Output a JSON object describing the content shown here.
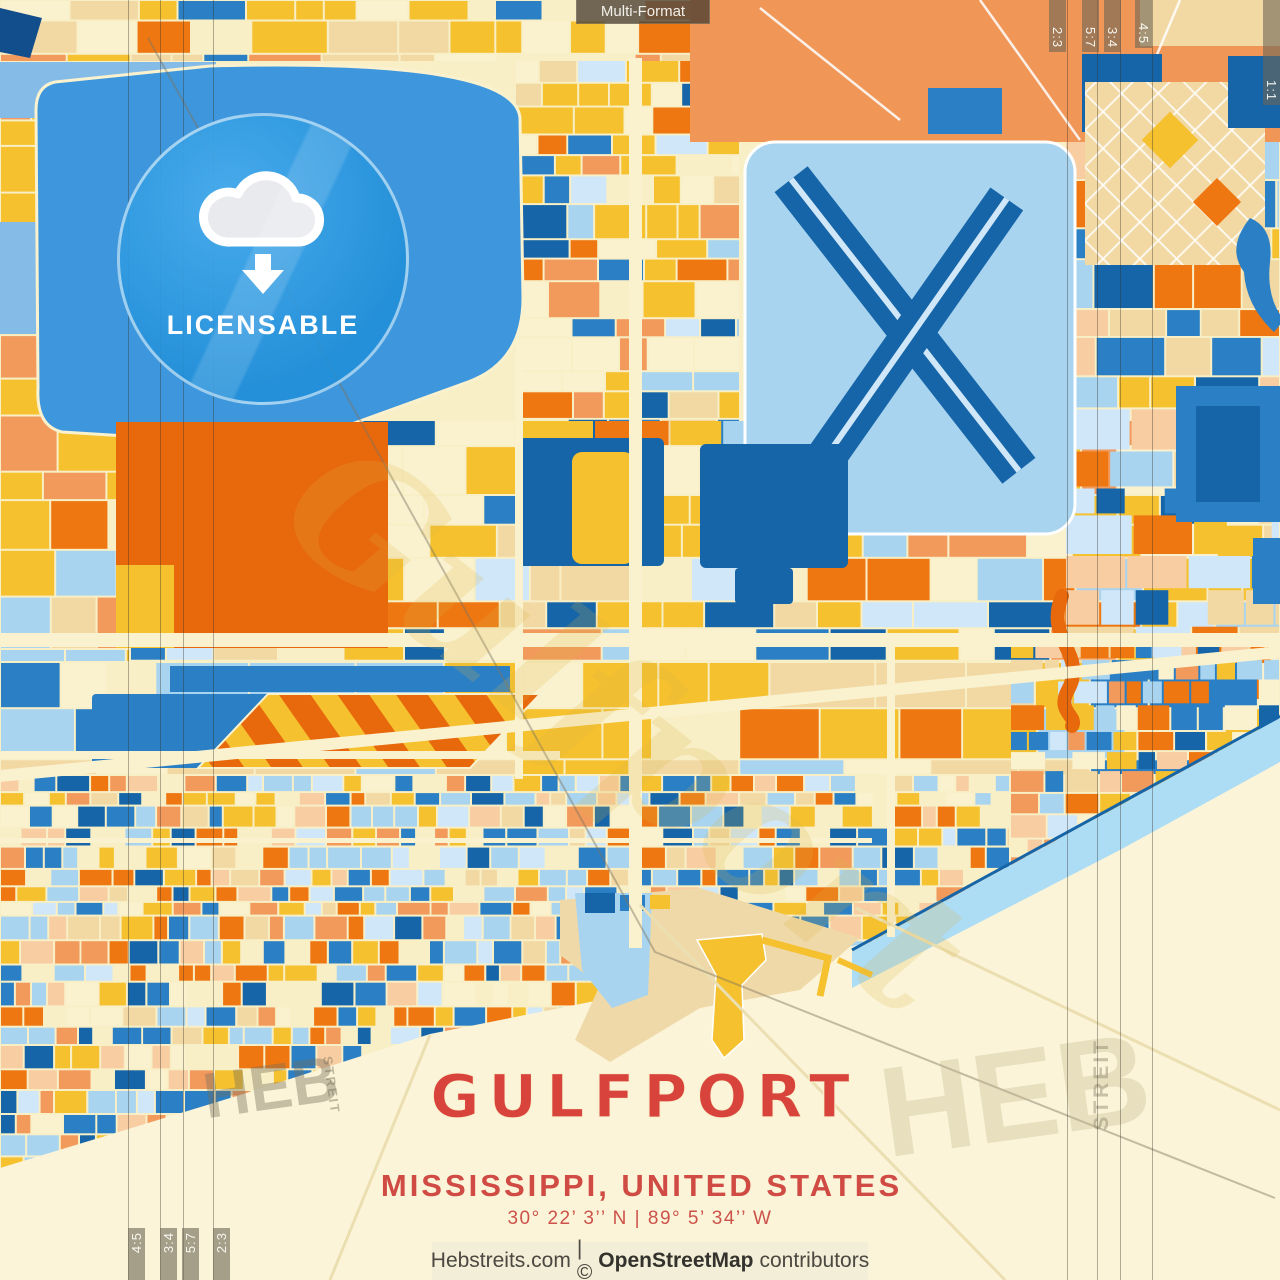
{
  "poster": {
    "format_badge": "Multi-Format",
    "license_badge": {
      "label": "LICENSABLE",
      "icon": "cloud-download-icon"
    },
    "title_block": {
      "city": "GULFPORT",
      "region": "MISSISSIPPI, UNITED STATES",
      "coordinates": "30° 22’ 3’’ N | 89° 5’ 34’’ W"
    },
    "footer": {
      "site": "Hebstreits.com",
      "divider": "| ©",
      "osm": "OpenStreetMap",
      "suffix": "contributors"
    },
    "watermarks": {
      "heb": "HEB",
      "streit": "STREIT",
      "script": "Gulfport"
    },
    "aspect_marks_top": [
      "2:3",
      "5:7",
      "3:4",
      "4:5",
      "1:1"
    ],
    "aspect_marks_bottom": [
      "4:5",
      "3:4",
      "5:7",
      "2:3"
    ],
    "colors": {
      "cream": "#F8EFC6",
      "sea_sand": "#FBF4D8",
      "tan": "#F2D9A4",
      "sand": "#EFD9A8",
      "pale_yellow": "#FAF2CF",
      "gold": "#F5C12F",
      "orange": "#EE7711",
      "deep_orange": "#E8680C",
      "light_orange": "#F29A5C",
      "pale_orange": "#F8CDA2",
      "salmon": "#F09758",
      "dark_blue": "#1565A8",
      "navy": "#134E8C",
      "blue": "#2B7FC4",
      "sky": "#3E96DC",
      "light_blue": "#A8D4F0",
      "pale_blue": "#CFE7F8",
      "water": "#ADDCF5",
      "lake_edge": "#85BCE7",
      "title_red": "#D8443C",
      "subtitle_red": "#CF4B44",
      "badge_blue": "#2E9BE2"
    }
  }
}
